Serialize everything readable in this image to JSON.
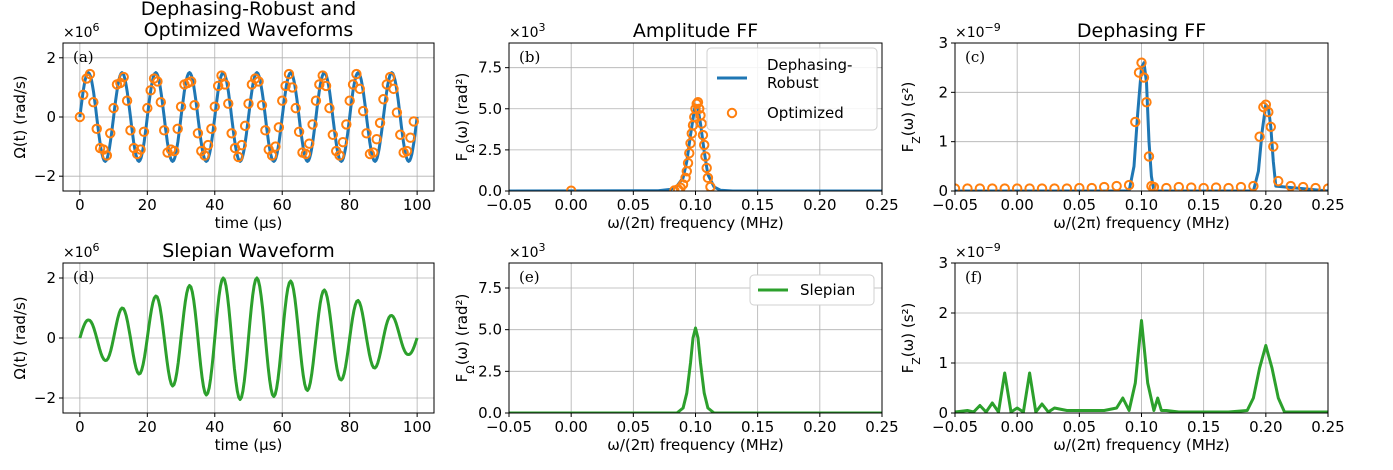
{
  "figure": {
    "panels": [
      {
        "id": "a",
        "title_lines": [
          "Dephasing-Robust and",
          "Optimized Waveforms"
        ],
        "panel_label": "(a)",
        "xlabel": "time (μs)",
        "ylabel": "Ω(t) (rad/s)",
        "multiplier": "×10^6",
        "xlim": [
          -5,
          105
        ],
        "ylim": [
          -2.5,
          2.5
        ],
        "xticks": [
          0,
          20,
          40,
          60,
          80,
          100
        ],
        "xticklabels": [
          "0",
          "20",
          "40",
          "60",
          "80",
          "100"
        ],
        "yticks": [
          -2,
          0,
          2
        ],
        "yticklabels": [
          "−2",
          "0",
          "2"
        ]
      },
      {
        "id": "b",
        "title": "Amplitude FF",
        "panel_label": "(b)",
        "xlabel": "ω/(2π) frequency (MHz)",
        "ylabel": "F_Ω(ω) (rad²)",
        "multiplier": "×10^3",
        "xlim": [
          -0.05,
          0.25
        ],
        "ylim": [
          0,
          9
        ],
        "xticks": [
          -0.05,
          0,
          0.05,
          0.1,
          0.15,
          0.2,
          0.25
        ],
        "xticklabels": [
          "−0.05",
          "0.00",
          "0.05",
          "0.10",
          "0.15",
          "0.20",
          "0.25"
        ],
        "yticks": [
          0,
          2.5,
          5,
          7.5
        ],
        "yticklabels": [
          "0.0",
          "2.5",
          "5.0",
          "7.5"
        ],
        "legend": [
          "Dephasing-\nRobust",
          "Optimized"
        ],
        "legend_loc": "upper right"
      },
      {
        "id": "c",
        "title": "Dephasing FF",
        "panel_label": "(c)",
        "xlabel": "ω/(2π) frequency (MHz)",
        "ylabel": "F_Z(ω) (s²)",
        "multiplier": "×10^−9",
        "xlim": [
          -0.05,
          0.25
        ],
        "ylim": [
          0,
          3
        ],
        "xticks": [
          -0.05,
          0,
          0.05,
          0.1,
          0.15,
          0.2,
          0.25
        ],
        "xticklabels": [
          "−0.05",
          "0.00",
          "0.05",
          "0.10",
          "0.15",
          "0.20",
          "0.25"
        ],
        "yticks": [
          0,
          1,
          2,
          3
        ],
        "yticklabels": [
          "0",
          "1",
          "2",
          "3"
        ]
      },
      {
        "id": "d",
        "title": "Slepian Waveform",
        "panel_label": "(d)",
        "xlabel": "time (μs)",
        "ylabel": "Ω(t) (rad/s)",
        "multiplier": "×10^6",
        "xlim": [
          -5,
          105
        ],
        "ylim": [
          -2.5,
          2.5
        ],
        "xticks": [
          0,
          20,
          40,
          60,
          80,
          100
        ],
        "xticklabels": [
          "0",
          "20",
          "40",
          "60",
          "80",
          "100"
        ],
        "yticks": [
          -2,
          0,
          2
        ],
        "yticklabels": [
          "−2",
          "0",
          "2"
        ]
      },
      {
        "id": "e",
        "title": "",
        "panel_label": "(e)",
        "xlabel": "ω/(2π) frequency (MHz)",
        "ylabel": "F_Ω(ω) (rad²)",
        "multiplier": "×10^3",
        "xlim": [
          -0.05,
          0.25
        ],
        "ylim": [
          0,
          9
        ],
        "xticks": [
          -0.05,
          0,
          0.05,
          0.1,
          0.15,
          0.2,
          0.25
        ],
        "xticklabels": [
          "−0.05",
          "0.00",
          "0.05",
          "0.10",
          "0.15",
          "0.20",
          "0.25"
        ],
        "yticks": [
          0,
          2.5,
          5,
          7.5
        ],
        "yticklabels": [
          "0.0",
          "2.5",
          "5.0",
          "7.5"
        ],
        "legend": [
          "Slepian"
        ],
        "legend_loc": "upper right"
      },
      {
        "id": "f",
        "title": "",
        "panel_label": "(f)",
        "xlabel": "ω/(2π) frequency (MHz)",
        "ylabel": "F_Z(ω) (s²)",
        "multiplier": "×10^−9",
        "xlim": [
          -0.05,
          0.25
        ],
        "ylim": [
          0,
          3
        ],
        "xticks": [
          -0.05,
          0,
          0.05,
          0.1,
          0.15,
          0.2,
          0.25
        ],
        "xticklabels": [
          "−0.05",
          "0.00",
          "0.05",
          "0.10",
          "0.15",
          "0.20",
          "0.25"
        ],
        "yticks": [
          0,
          1,
          2,
          3
        ],
        "yticklabels": [
          "0",
          "1",
          "2",
          "3"
        ]
      }
    ],
    "colors": {
      "dephasing_robust": "#1f77b4",
      "optimized": "#ff7f0e",
      "slepian": "#2ca02c",
      "grid": "#b0b0b0"
    }
  },
  "chart_data": [
    {
      "panel": "a",
      "type": "line",
      "series": [
        {
          "name": "Dephasing-Robust",
          "kind": "line",
          "description_of_shape": "sinusoid, amplitude 1.5e6 rad/s, period 10 us, t 0-100 us",
          "x": [
            0,
            2.5,
            5,
            7.5,
            10,
            12.5,
            15,
            17.5,
            20,
            22.5,
            25,
            27.5,
            30,
            32.5,
            35,
            37.5,
            40,
            42.5,
            45,
            47.5,
            50,
            52.5,
            55,
            57.5,
            60,
            62.5,
            65,
            67.5,
            70,
            72.5,
            75,
            77.5,
            80,
            82.5,
            85,
            87.5,
            90,
            92.5,
            95,
            97.5,
            100
          ],
          "y": [
            0,
            1.5,
            0,
            -1.5,
            0,
            1.5,
            0,
            -1.5,
            0,
            1.5,
            0,
            -1.5,
            0,
            1.5,
            0,
            -1.5,
            0,
            1.5,
            0,
            -1.5,
            0,
            1.5,
            0,
            -1.5,
            0,
            1.5,
            0,
            -1.5,
            0,
            1.5,
            0,
            -1.5,
            0,
            1.5,
            0,
            -1.5,
            0,
            1.5,
            0,
            -1.5,
            0
          ]
        },
        {
          "name": "Optimized",
          "kind": "markers",
          "x": [
            0,
            1,
            2,
            3,
            4,
            5,
            6,
            7,
            8,
            9,
            10,
            11,
            12,
            13,
            14,
            15,
            16,
            17,
            18,
            19,
            20,
            21,
            22,
            23,
            24,
            25,
            26,
            27,
            28,
            29,
            30,
            31,
            32,
            33,
            34,
            35,
            36,
            37,
            38,
            39,
            40,
            41,
            42,
            43,
            44,
            45,
            46,
            47,
            48,
            49,
            50,
            51,
            52,
            53,
            54,
            55,
            56,
            57,
            58,
            59,
            60,
            61,
            62,
            63,
            64,
            65,
            66,
            67,
            68,
            69,
            70,
            71,
            72,
            73,
            74,
            75,
            76,
            77,
            78,
            79,
            80,
            81,
            82,
            83,
            84,
            85,
            86,
            87,
            88,
            89,
            90,
            91,
            92,
            93,
            94,
            95,
            96,
            97,
            98,
            99
          ],
          "y": [
            0,
            0.75,
            1.3,
            1.45,
            0.5,
            -0.4,
            -1.05,
            -1.1,
            -1.3,
            -0.55,
            0.3,
            1.1,
            1.15,
            1.35,
            0.55,
            -0.45,
            -1.05,
            -1.25,
            -1.1,
            -0.5,
            0.3,
            0.9,
            1.3,
            1.2,
            0.5,
            -0.45,
            -1.2,
            -1.1,
            -1.15,
            -0.4,
            0.35,
            1.1,
            1.15,
            1.2,
            0.4,
            -0.55,
            -1.15,
            -1.3,
            -0.95,
            -0.4,
            0.35,
            1.05,
            1.4,
            1.1,
            0.45,
            -0.55,
            -1.05,
            -1.35,
            -0.95,
            -0.3,
            0.45,
            1.1,
            1.3,
            1.2,
            0.4,
            -0.45,
            -1.1,
            -1.3,
            -1.0,
            -0.35,
            0.55,
            1.05,
            1.45,
            1.0,
            0.3,
            -0.5,
            -1.2,
            -1.25,
            -0.9,
            -0.25,
            0.55,
            1.1,
            1.4,
            1.05,
            0.3,
            -0.6,
            -1.15,
            -1.3,
            -0.85,
            -0.25,
            0.55,
            1.1,
            1.45,
            0.95,
            0.2,
            -0.55,
            -1.25,
            -1.2,
            -0.75,
            -0.2,
            0.6,
            1.1,
            1.35,
            0.95,
            0.15,
            -0.6,
            -1.2,
            -1.15,
            -0.7,
            -0.15
          ]
        }
      ]
    },
    {
      "panel": "b",
      "type": "line",
      "series": [
        {
          "name": "Dephasing-Robust",
          "kind": "line",
          "x": [
            -0.05,
            0.07,
            0.08,
            0.085,
            0.09,
            0.093,
            0.096,
            0.099,
            0.1,
            0.102,
            0.104,
            0.107,
            0.11,
            0.115,
            0.12,
            0.13,
            0.25
          ],
          "y": [
            0,
            0.02,
            0.1,
            0.3,
            0.8,
            1.8,
            3.4,
            4.9,
            5.2,
            5.0,
            4.1,
            2.4,
            1.0,
            0.25,
            0.05,
            0,
            0
          ]
        },
        {
          "name": "Optimized",
          "kind": "markers",
          "x": [
            0.0,
            0.083,
            0.086,
            0.088,
            0.09,
            0.092,
            0.093,
            0.094,
            0.095,
            0.096,
            0.097,
            0.098,
            0.099,
            0.1,
            0.101,
            0.102,
            0.103,
            0.104,
            0.105,
            0.106,
            0.107,
            0.108,
            0.109,
            0.11,
            0.112
          ],
          "y": [
            0.02,
            0.03,
            0.1,
            0.2,
            0.4,
            0.8,
            1.2,
            1.7,
            2.3,
            2.9,
            3.5,
            4.0,
            4.5,
            5.0,
            5.3,
            5.4,
            5.0,
            4.6,
            4.1,
            3.4,
            2.8,
            2.1,
            1.4,
            0.8,
            0.25
          ]
        }
      ]
    },
    {
      "panel": "c",
      "type": "line",
      "series": [
        {
          "name": "Dephasing-Robust",
          "kind": "line",
          "x": [
            -0.05,
            0.09,
            0.094,
            0.097,
            0.1,
            0.102,
            0.104,
            0.106,
            0.108,
            0.11,
            0.19,
            0.194,
            0.197,
            0.2,
            0.202,
            0.204,
            0.206,
            0.208,
            0.25
          ],
          "y": [
            0,
            0,
            0.5,
            1.6,
            2.5,
            2.6,
            2.2,
            1.0,
            0.3,
            0,
            0,
            0.4,
            1.2,
            1.75,
            1.7,
            1.3,
            0.6,
            0.1,
            0
          ]
        },
        {
          "name": "Optimized",
          "kind": "markers",
          "x": [
            -0.05,
            -0.04,
            -0.03,
            -0.02,
            -0.01,
            0.0,
            0.01,
            0.02,
            0.03,
            0.04,
            0.05,
            0.06,
            0.07,
            0.08,
            0.09,
            0.095,
            0.098,
            0.1,
            0.102,
            0.104,
            0.106,
            0.108,
            0.11,
            0.12,
            0.13,
            0.14,
            0.15,
            0.16,
            0.17,
            0.18,
            0.19,
            0.195,
            0.198,
            0.2,
            0.202,
            0.204,
            0.206,
            0.21,
            0.22,
            0.23,
            0.24,
            0.25
          ],
          "y": [
            0.05,
            0.05,
            0.05,
            0.05,
            0.05,
            0.05,
            0.05,
            0.05,
            0.05,
            0.05,
            0.06,
            0.06,
            0.08,
            0.1,
            0.12,
            1.4,
            2.4,
            2.6,
            2.3,
            1.8,
            0.7,
            0.1,
            0.08,
            0.06,
            0.08,
            0.07,
            0.06,
            0.07,
            0.06,
            0.08,
            0.1,
            1.1,
            1.7,
            1.75,
            1.6,
            1.3,
            0.9,
            0.2,
            0.1,
            0.08,
            0.06,
            0.05
          ]
        }
      ]
    },
    {
      "panel": "d",
      "type": "line",
      "series": [
        {
          "name": "Slepian",
          "kind": "line",
          "description_of_shape": "sinusoid period 10 us modulated by Slepian window, peak ~2.0e6 rad/s near 45-55 us",
          "x": [
            0,
            2.5,
            7.5,
            12.5,
            17.5,
            22.5,
            27.5,
            32.5,
            37.5,
            42.5,
            47.5,
            52.5,
            57.5,
            62.5,
            67.5,
            72.5,
            77.5,
            82.5,
            87.5,
            92.5,
            97.5,
            100
          ],
          "y": [
            0,
            0.6,
            -0.75,
            1.0,
            -1.2,
            1.4,
            -1.6,
            1.75,
            -1.9,
            2.0,
            -2.05,
            2.0,
            -1.95,
            1.9,
            -1.75,
            1.6,
            -1.4,
            1.25,
            -1.0,
            0.75,
            -0.55,
            0
          ]
        }
      ]
    },
    {
      "panel": "e",
      "type": "line",
      "series": [
        {
          "name": "Slepian",
          "kind": "line",
          "x": [
            -0.05,
            0.085,
            0.09,
            0.093,
            0.096,
            0.098,
            0.1,
            0.102,
            0.104,
            0.107,
            0.11,
            0.115,
            0.25
          ],
          "y": [
            0,
            0,
            0.3,
            1.2,
            3.0,
            4.5,
            5.1,
            4.5,
            3.0,
            1.2,
            0.3,
            0,
            0
          ]
        }
      ]
    },
    {
      "panel": "f",
      "type": "line",
      "series": [
        {
          "name": "Slepian",
          "kind": "line",
          "x": [
            -0.05,
            -0.04,
            -0.035,
            -0.03,
            -0.025,
            -0.02,
            -0.015,
            -0.01,
            -0.005,
            0.0,
            0.005,
            0.01,
            0.015,
            0.02,
            0.025,
            0.03,
            0.04,
            0.05,
            0.06,
            0.07,
            0.08,
            0.085,
            0.09,
            0.095,
            0.1,
            0.105,
            0.11,
            0.113,
            0.116,
            0.12,
            0.13,
            0.15,
            0.17,
            0.185,
            0.19,
            0.195,
            0.2,
            0.205,
            0.21,
            0.215,
            0.25
          ],
          "y": [
            0.02,
            0.05,
            0.02,
            0.15,
            0.02,
            0.2,
            0.02,
            0.8,
            0.02,
            0.1,
            0.02,
            0.8,
            0.02,
            0.18,
            0.02,
            0.1,
            0.05,
            0.05,
            0.05,
            0.05,
            0.1,
            0.3,
            0.05,
            0.6,
            1.85,
            0.6,
            0.05,
            0.3,
            0.05,
            0.05,
            0.02,
            0.02,
            0.02,
            0.05,
            0.3,
            0.9,
            1.35,
            0.9,
            0.3,
            0.02,
            0.02
          ]
        }
      ]
    }
  ]
}
